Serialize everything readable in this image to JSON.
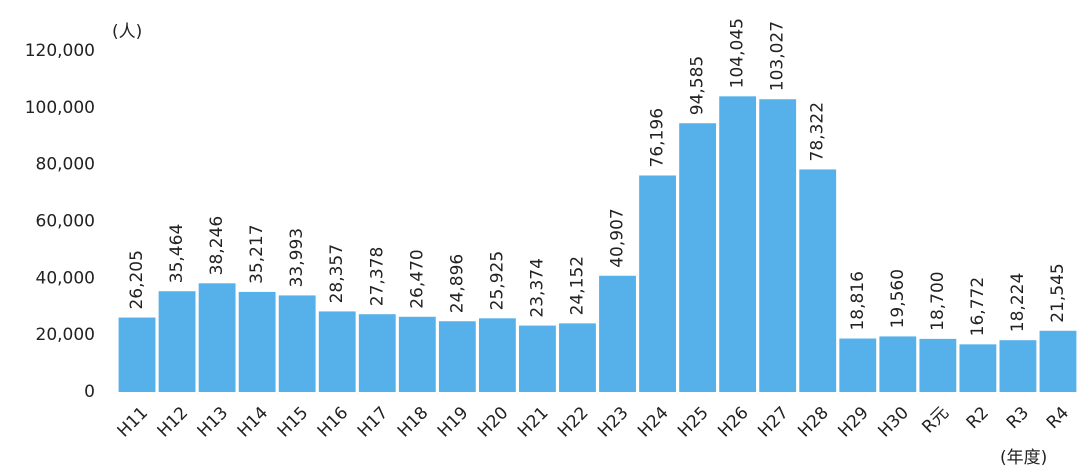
{
  "chart_data": {
    "type": "bar",
    "y_axis_label": "(人)",
    "x_axis_label": "(年度)",
    "categories": [
      "H11",
      "H12",
      "H13",
      "H14",
      "H15",
      "H16",
      "H17",
      "H18",
      "H19",
      "H20",
      "H21",
      "H22",
      "H23",
      "H24",
      "H25",
      "H26",
      "H27",
      "H28",
      "H29",
      "H30",
      "R元",
      "R2",
      "R3",
      "R4"
    ],
    "values": [
      26205,
      35464,
      38246,
      35217,
      33993,
      28357,
      27378,
      26470,
      24896,
      25925,
      23374,
      24152,
      40907,
      76196,
      94585,
      104045,
      103027,
      78322,
      18816,
      19560,
      18700,
      16772,
      18224,
      21545
    ],
    "value_labels": [
      "26,205",
      "35,464",
      "38,246",
      "35,217",
      "33,993",
      "28,357",
      "27,378",
      "26,470",
      "24,896",
      "25,925",
      "23,374",
      "24,152",
      "40,907",
      "76,196",
      "94,585",
      "104,045",
      "103,027",
      "78,322",
      "18,816",
      "19,560",
      "18,700",
      "16,772",
      "18,224",
      "21,545"
    ],
    "color": "#56b0ea",
    "ylim": [
      0,
      120000
    ],
    "yticks": [
      0,
      {
        "value": 20000,
        "label": "20,000"
      },
      {
        "value": 40000,
        "label": "40,000"
      },
      {
        "value": 60000,
        "label": "60,000"
      },
      {
        "value": 80000,
        "label": "80,000"
      },
      {
        "value": 100000,
        "label": "100,000"
      },
      {
        "value": 120000,
        "label": "120,000"
      }
    ],
    "grid": false
  }
}
